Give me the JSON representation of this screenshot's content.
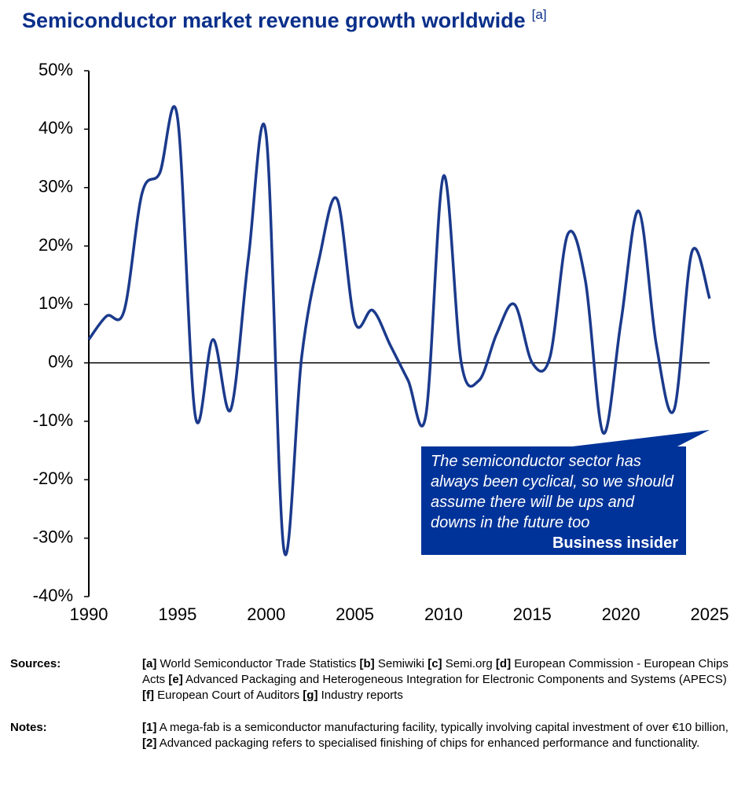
{
  "chart_data": {
    "type": "line",
    "title": "Semiconductor market revenue growth worldwide",
    "title_note": "[a]",
    "x": [
      1990,
      1991,
      1992,
      1993,
      1994,
      1995,
      1996,
      1997,
      1998,
      1999,
      2000,
      2001,
      2002,
      2003,
      2004,
      2005,
      2006,
      2007,
      2008,
      2009,
      2010,
      2011,
      2012,
      2013,
      2014,
      2015,
      2016,
      2017,
      2018,
      2019,
      2020,
      2021,
      2022,
      2023,
      2024,
      2025
    ],
    "series": [
      {
        "name": "Revenue growth",
        "color": "#1b3a8c",
        "values": [
          4,
          8,
          9,
          29,
          32.5,
          42,
          -9,
          4,
          -8,
          18,
          39,
          -32,
          1,
          18,
          28,
          7,
          9,
          3,
          -3,
          -9,
          32,
          0,
          -3,
          5,
          10,
          0,
          1,
          22,
          14,
          -12,
          7,
          26,
          3,
          -8,
          19,
          11
        ]
      }
    ],
    "xlim": [
      1990,
      2025
    ],
    "xticks": [
      1990,
      1995,
      2000,
      2005,
      2010,
      2015,
      2020,
      2025
    ],
    "ylim": [
      -40,
      50
    ],
    "yticks": [
      {
        "value": 50,
        "label": "50%"
      },
      {
        "value": 40,
        "label": "40%"
      },
      {
        "value": 30,
        "label": "30%"
      },
      {
        "value": 20,
        "label": "20%"
      },
      {
        "value": 10,
        "label": "10%"
      },
      {
        "value": 0,
        "label": "0%"
      },
      {
        "value": -10,
        "label": "-10%"
      },
      {
        "value": -20,
        "label": "-20%"
      },
      {
        "value": -30,
        "label": "-30%"
      },
      {
        "value": -40,
        "label": "-40%"
      }
    ],
    "annotation": {
      "text": "The semiconductor sector has always been cyclical, so we should assume there will be ups and downs in the future too",
      "source": "Business insider"
    }
  },
  "footer": {
    "sources_label": "Sources:",
    "sources": [
      [
        {
          "ref": "[a]",
          "text": "World Semiconductor Trade Statistics"
        },
        {
          "ref": "[b]",
          "text": "Semiwiki"
        },
        {
          "ref": "[c]",
          "text": "Semi.org"
        },
        {
          "ref": "[d]",
          "text": "European Commission - European Chips Acts"
        },
        {
          "ref": "[e]",
          "text": "Advanced Packaging and Heterogeneous Integration for Electronic Components and Systems (APECS)"
        }
      ],
      [
        {
          "ref": "[f]",
          "text": "European Court of Auditors"
        },
        {
          "ref": "[g]",
          "text": "Industry reports"
        }
      ]
    ],
    "notes_label": "Notes:",
    "notes": [
      {
        "ref": "[1]",
        "text": "A mega-fab is a semiconductor manufacturing facility, typically involving capital investment of over €10 billion,"
      },
      {
        "ref": "[2]",
        "text": "Advanced packaging refers to specialised finishing of chips for enhanced performance and functionality."
      }
    ]
  }
}
